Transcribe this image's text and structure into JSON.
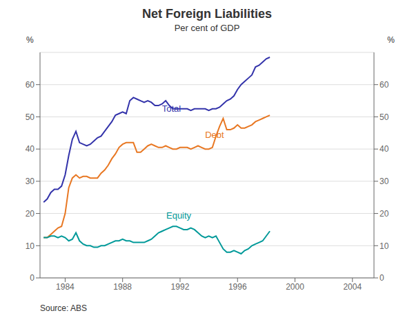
{
  "chart_data": {
    "type": "line",
    "title": "Net Foreign Liabilities",
    "subtitle": "Per cent of GDP",
    "source": "Source: ABS",
    "ylabel": "%",
    "y2label": "%",
    "xlim": [
      1982.25,
      2005.5
    ],
    "xticks": [
      1984,
      1988,
      1992,
      1996,
      2000,
      2004
    ],
    "ylim": [
      0,
      70
    ],
    "yticks": [
      0,
      10,
      20,
      30,
      40,
      50,
      60
    ],
    "y2lim": [
      0,
      70
    ],
    "y2ticks": [
      0,
      10,
      20,
      30,
      40,
      50,
      60
    ],
    "grid": "y",
    "x": [
      1982.5,
      1982.75,
      1983,
      1983.25,
      1983.5,
      1983.75,
      1984,
      1984.25,
      1984.5,
      1984.75,
      1985,
      1985.25,
      1985.5,
      1985.75,
      1986,
      1986.25,
      1986.5,
      1986.75,
      1987,
      1987.25,
      1987.5,
      1987.75,
      1988,
      1988.25,
      1988.5,
      1988.75,
      1989,
      1989.25,
      1989.5,
      1989.75,
      1990,
      1990.25,
      1990.5,
      1990.75,
      1991,
      1991.25,
      1991.5,
      1991.75,
      1992,
      1992.25,
      1992.5,
      1992.75,
      1993,
      1993.25,
      1993.5,
      1993.75,
      1994,
      1994.25,
      1994.5,
      1994.75,
      1995,
      1995.25,
      1995.5,
      1995.75,
      1996,
      1996.25,
      1996.5,
      1996.75,
      1997,
      1997.25,
      1997.5,
      1997.75,
      1998,
      1998.25
    ],
    "series": [
      {
        "name": "Total",
        "color": "#3333aa",
        "values": [
          23.5,
          24.5,
          26.5,
          27.5,
          27.5,
          28.5,
          32.0,
          38.0,
          43.0,
          45.5,
          42.0,
          41.5,
          41.0,
          41.5,
          42.5,
          43.5,
          44.0,
          45.5,
          47.0,
          48.5,
          50.5,
          51.0,
          51.5,
          51.0,
          55.0,
          56.0,
          55.5,
          55.0,
          54.5,
          55.0,
          54.5,
          53.5,
          53.5,
          54.0,
          55.0,
          53.5,
          52.5,
          52.5,
          52.5,
          52.5,
          52.5,
          52.0,
          52.5,
          52.5,
          52.5,
          52.5,
          52.0,
          52.5,
          52.5,
          53.0,
          54.0,
          55.0,
          55.5,
          56.5,
          58.5,
          60.0,
          61.0,
          62.0,
          63.0,
          65.5,
          66.0,
          67.0,
          68.0,
          68.5
        ]
      },
      {
        "name": "Debt",
        "color": "#e87722",
        "values": [
          12.5,
          12.5,
          13.5,
          14.5,
          15.5,
          16.0,
          20.0,
          28.0,
          31.0,
          32.0,
          31.0,
          31.5,
          31.5,
          31.0,
          31.0,
          31.0,
          32.5,
          33.5,
          35.0,
          37.0,
          38.5,
          40.5,
          41.5,
          42.0,
          42.0,
          42.0,
          39.0,
          39.0,
          40.0,
          41.0,
          41.5,
          41.0,
          40.5,
          40.5,
          41.0,
          40.5,
          40.0,
          40.0,
          40.5,
          40.5,
          40.5,
          40.0,
          40.5,
          41.0,
          40.5,
          40.0,
          40.0,
          40.5,
          44.0,
          47.0,
          49.5,
          46.0,
          46.0,
          46.5,
          47.5,
          46.5,
          46.5,
          47.0,
          47.5,
          48.5,
          49.0,
          49.5,
          50.0,
          50.5
        ]
      },
      {
        "name": "Equity",
        "color": "#009999",
        "values": [
          12.5,
          12.5,
          13.0,
          13.0,
          12.5,
          13.0,
          12.5,
          11.5,
          12.0,
          14.0,
          11.5,
          10.5,
          10.0,
          10.0,
          9.5,
          9.5,
          10.0,
          10.0,
          10.5,
          11.0,
          11.5,
          11.5,
          12.0,
          11.5,
          11.5,
          11.0,
          11.0,
          11.0,
          11.0,
          11.5,
          12.0,
          13.0,
          14.0,
          14.5,
          15.0,
          15.5,
          16.0,
          16.0,
          15.5,
          15.0,
          15.0,
          15.5,
          15.0,
          14.0,
          13.0,
          12.5,
          13.0,
          12.5,
          13.0,
          11.0,
          9.0,
          8.0,
          8.0,
          8.5,
          8.0,
          7.5,
          8.5,
          9.0,
          10.0,
          10.5,
          11.0,
          11.5,
          13.0,
          14.5
        ]
      }
    ],
    "annotations": [
      {
        "text": "Total",
        "x": 1990.5,
        "y": 52.5,
        "color": "#3333aa"
      },
      {
        "text": "Debt",
        "x": 1993.5,
        "y": 44.5,
        "color": "#e87722"
      },
      {
        "text": "Equity",
        "x": 1990.8,
        "y": 19.5,
        "color": "#009999"
      }
    ]
  }
}
